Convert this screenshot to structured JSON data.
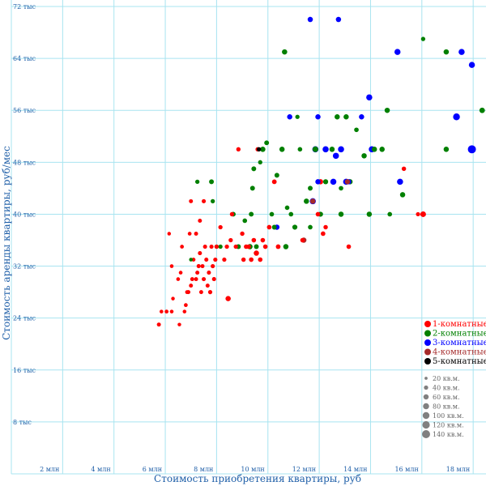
{
  "chart_data": {
    "type": "scatter",
    "xlabel": "Стоимость приобретения квартиры, руб",
    "ylabel": "Стоимость аренды квартиры, руб/мес",
    "xlim": [
      0,
      18.5
    ],
    "ylim": [
      0,
      73
    ],
    "x_ticks": [
      {
        "value": 2,
        "label": "2 млн"
      },
      {
        "value": 4,
        "label": "4 млн"
      },
      {
        "value": 6,
        "label": "6 млн"
      },
      {
        "value": 8,
        "label": "8 млн"
      },
      {
        "value": 10,
        "label": "10 млн"
      },
      {
        "value": 12,
        "label": "12 млн"
      },
      {
        "value": 14,
        "label": "14 млн"
      },
      {
        "value": 16,
        "label": "16 млн"
      },
      {
        "value": 18,
        "label": "18 млн"
      }
    ],
    "y_ticks": [
      {
        "value": 8,
        "label": "8 тыс"
      },
      {
        "value": 16,
        "label": "16 тыс"
      },
      {
        "value": 24,
        "label": "24 тыс"
      },
      {
        "value": 32,
        "label": "32 тыс"
      },
      {
        "value": 40,
        "label": "40 тыс"
      },
      {
        "value": 48,
        "label": "48 тыс"
      },
      {
        "value": 56,
        "label": "56 тыс"
      },
      {
        "value": 64,
        "label": "64 тыс"
      },
      {
        "value": 72,
        "label": "72 тыс"
      }
    ],
    "grid": true,
    "grid_color": "#a8e4f0",
    "legend_position": "bottom-right",
    "series": [
      {
        "name": "1-комнатные",
        "color": "#ff0000",
        "points": [
          {
            "x": 5.75,
            "y": 23,
            "area": 35
          },
          {
            "x": 5.85,
            "y": 25,
            "area": 30
          },
          {
            "x": 6.05,
            "y": 25,
            "area": 32
          },
          {
            "x": 6.25,
            "y": 25,
            "area": 30
          },
          {
            "x": 6.55,
            "y": 23,
            "area": 28
          },
          {
            "x": 6.15,
            "y": 37,
            "area": 28
          },
          {
            "x": 6.25,
            "y": 32,
            "area": 30
          },
          {
            "x": 6.3,
            "y": 27,
            "area": 28
          },
          {
            "x": 6.5,
            "y": 30,
            "area": 30
          },
          {
            "x": 6.6,
            "y": 31,
            "area": 30
          },
          {
            "x": 6.65,
            "y": 35,
            "area": 32
          },
          {
            "x": 6.75,
            "y": 25,
            "area": 30
          },
          {
            "x": 6.8,
            "y": 26,
            "area": 32
          },
          {
            "x": 6.85,
            "y": 28,
            "area": 33
          },
          {
            "x": 6.9,
            "y": 28,
            "area": 35
          },
          {
            "x": 7.0,
            "y": 29,
            "area": 34
          },
          {
            "x": 7.05,
            "y": 30,
            "area": 34
          },
          {
            "x": 7.1,
            "y": 33,
            "area": 34
          },
          {
            "x": 7.0,
            "y": 42,
            "area": 35
          },
          {
            "x": 6.95,
            "y": 37,
            "area": 32
          },
          {
            "x": 7.2,
            "y": 30,
            "area": 34
          },
          {
            "x": 7.25,
            "y": 31,
            "area": 35
          },
          {
            "x": 7.3,
            "y": 32,
            "area": 36
          },
          {
            "x": 7.35,
            "y": 34,
            "area": 36
          },
          {
            "x": 7.4,
            "y": 28,
            "area": 34
          },
          {
            "x": 7.45,
            "y": 32,
            "area": 35
          },
          {
            "x": 7.5,
            "y": 30,
            "area": 36
          },
          {
            "x": 7.55,
            "y": 35,
            "area": 37
          },
          {
            "x": 7.6,
            "y": 33,
            "area": 36
          },
          {
            "x": 7.65,
            "y": 29,
            "area": 35
          },
          {
            "x": 7.7,
            "y": 31,
            "area": 36
          },
          {
            "x": 7.75,
            "y": 28,
            "area": 38
          },
          {
            "x": 7.8,
            "y": 35,
            "area": 37
          },
          {
            "x": 7.85,
            "y": 32,
            "area": 38
          },
          {
            "x": 7.9,
            "y": 30,
            "area": 37
          },
          {
            "x": 7.95,
            "y": 33,
            "area": 38
          },
          {
            "x": 7.35,
            "y": 39,
            "area": 35
          },
          {
            "x": 7.5,
            "y": 42,
            "area": 37
          },
          {
            "x": 7.2,
            "y": 37,
            "area": 35
          },
          {
            "x": 8.0,
            "y": 35,
            "area": 38
          },
          {
            "x": 8.15,
            "y": 38,
            "area": 40
          },
          {
            "x": 8.3,
            "y": 33,
            "area": 39
          },
          {
            "x": 8.4,
            "y": 35,
            "area": 40
          },
          {
            "x": 8.45,
            "y": 27,
            "area": 60
          },
          {
            "x": 8.55,
            "y": 36,
            "area": 40
          },
          {
            "x": 8.6,
            "y": 40,
            "area": 40
          },
          {
            "x": 8.75,
            "y": 35,
            "area": 40
          },
          {
            "x": 8.85,
            "y": 50,
            "area": 40
          },
          {
            "x": 9.0,
            "y": 37,
            "area": 42
          },
          {
            "x": 9.05,
            "y": 33,
            "area": 42
          },
          {
            "x": 9.15,
            "y": 35,
            "area": 43
          },
          {
            "x": 9.25,
            "y": 35,
            "area": 45
          },
          {
            "x": 9.35,
            "y": 33,
            "area": 45
          },
          {
            "x": 9.45,
            "y": 36,
            "area": 45
          },
          {
            "x": 9.55,
            "y": 34,
            "area": 60
          },
          {
            "x": 9.6,
            "y": 50,
            "area": 40
          },
          {
            "x": 9.7,
            "y": 33,
            "area": 45
          },
          {
            "x": 9.8,
            "y": 36,
            "area": 45
          },
          {
            "x": 9.9,
            "y": 35,
            "area": 45
          },
          {
            "x": 10.05,
            "y": 38,
            "area": 45
          },
          {
            "x": 10.25,
            "y": 45,
            "area": 48
          },
          {
            "x": 10.4,
            "y": 35,
            "area": 48
          },
          {
            "x": 11.35,
            "y": 36,
            "area": 45
          },
          {
            "x": 11.95,
            "y": 40,
            "area": 45
          },
          {
            "x": 12.15,
            "y": 37,
            "area": 45
          },
          {
            "x": 12.25,
            "y": 38,
            "area": 42
          },
          {
            "x": 13.15,
            "y": 35,
            "area": 45
          },
          {
            "x": 15.3,
            "y": 47,
            "area": 42
          },
          {
            "x": 16.05,
            "y": 40,
            "area": 70
          },
          {
            "x": 15.85,
            "y": 40,
            "area": 38
          },
          {
            "x": 12.05,
            "y": 45,
            "area": 60
          }
        ]
      },
      {
        "name": "2-комнатные",
        "color": "#008000",
        "points": [
          {
            "x": 7.0,
            "y": 33,
            "area": 30
          },
          {
            "x": 7.25,
            "y": 45,
            "area": 40
          },
          {
            "x": 7.8,
            "y": 45,
            "area": 50
          },
          {
            "x": 7.85,
            "y": 42,
            "area": 40
          },
          {
            "x": 8.0,
            "y": 35,
            "area": 40
          },
          {
            "x": 8.15,
            "y": 35,
            "area": 40
          },
          {
            "x": 8.65,
            "y": 40,
            "area": 50
          },
          {
            "x": 8.85,
            "y": 35,
            "area": 50
          },
          {
            "x": 9.1,
            "y": 39,
            "area": 45
          },
          {
            "x": 9.35,
            "y": 40,
            "area": 50
          },
          {
            "x": 9.4,
            "y": 44,
            "area": 50
          },
          {
            "x": 9.45,
            "y": 47,
            "area": 50
          },
          {
            "x": 9.55,
            "y": 35,
            "area": 50
          },
          {
            "x": 9.7,
            "y": 48,
            "area": 40
          },
          {
            "x": 9.8,
            "y": 50,
            "area": 60
          },
          {
            "x": 9.95,
            "y": 51,
            "area": 50
          },
          {
            "x": 10.15,
            "y": 40,
            "area": 45
          },
          {
            "x": 10.25,
            "y": 38,
            "area": 50
          },
          {
            "x": 10.35,
            "y": 46,
            "area": 50
          },
          {
            "x": 10.55,
            "y": 50,
            "area": 60
          },
          {
            "x": 10.65,
            "y": 65,
            "area": 60
          },
          {
            "x": 10.75,
            "y": 41,
            "area": 45
          },
          {
            "x": 10.9,
            "y": 40,
            "area": 45
          },
          {
            "x": 11.05,
            "y": 38,
            "area": 55
          },
          {
            "x": 11.15,
            "y": 55,
            "area": 40
          },
          {
            "x": 11.25,
            "y": 50,
            "area": 45
          },
          {
            "x": 11.5,
            "y": 42,
            "area": 60
          },
          {
            "x": 11.65,
            "y": 44,
            "area": 50
          },
          {
            "x": 11.85,
            "y": 50,
            "area": 70
          },
          {
            "x": 12.05,
            "y": 40,
            "area": 55
          },
          {
            "x": 12.25,
            "y": 45,
            "area": 55
          },
          {
            "x": 12.5,
            "y": 50,
            "area": 60
          },
          {
            "x": 12.7,
            "y": 55,
            "area": 60
          },
          {
            "x": 12.85,
            "y": 40,
            "area": 60
          },
          {
            "x": 13.05,
            "y": 55,
            "area": 60
          },
          {
            "x": 13.2,
            "y": 45,
            "area": 60
          },
          {
            "x": 13.45,
            "y": 53,
            "area": 45
          },
          {
            "x": 13.75,
            "y": 49,
            "area": 60
          },
          {
            "x": 13.95,
            "y": 40,
            "area": 60
          },
          {
            "x": 14.15,
            "y": 50,
            "area": 60
          },
          {
            "x": 14.45,
            "y": 50,
            "area": 60
          },
          {
            "x": 14.65,
            "y": 56,
            "area": 60
          },
          {
            "x": 14.75,
            "y": 40,
            "area": 45
          },
          {
            "x": 15.25,
            "y": 43,
            "area": 60
          },
          {
            "x": 16.05,
            "y": 67,
            "area": 40
          },
          {
            "x": 16.95,
            "y": 65,
            "area": 60
          },
          {
            "x": 16.95,
            "y": 50,
            "area": 60
          },
          {
            "x": 18.35,
            "y": 56,
            "area": 65
          },
          {
            "x": 9.3,
            "y": 35,
            "area": 60
          },
          {
            "x": 10.7,
            "y": 35,
            "area": 60
          },
          {
            "x": 11.65,
            "y": 38,
            "area": 45
          },
          {
            "x": 12.85,
            "y": 44,
            "area": 45
          }
        ]
      },
      {
        "name": "3-комнатные",
        "color": "#0000ff",
        "points": [
          {
            "x": 10.35,
            "y": 38,
            "area": 60
          },
          {
            "x": 10.85,
            "y": 55,
            "area": 60
          },
          {
            "x": 11.65,
            "y": 70,
            "area": 60
          },
          {
            "x": 11.75,
            "y": 42,
            "area": 80
          },
          {
            "x": 11.85,
            "y": 50,
            "area": 80
          },
          {
            "x": 11.95,
            "y": 55,
            "area": 60
          },
          {
            "x": 12.25,
            "y": 50,
            "area": 80
          },
          {
            "x": 12.55,
            "y": 45,
            "area": 80
          },
          {
            "x": 12.65,
            "y": 49,
            "area": 80
          },
          {
            "x": 12.75,
            "y": 70,
            "area": 60
          },
          {
            "x": 12.85,
            "y": 50,
            "area": 80
          },
          {
            "x": 13.05,
            "y": 45,
            "area": 80
          },
          {
            "x": 13.15,
            "y": 45,
            "area": 60
          },
          {
            "x": 13.65,
            "y": 55,
            "area": 60
          },
          {
            "x": 13.95,
            "y": 58,
            "area": 80
          },
          {
            "x": 14.05,
            "y": 50,
            "area": 80
          },
          {
            "x": 15.05,
            "y": 65,
            "area": 80
          },
          {
            "x": 15.15,
            "y": 45,
            "area": 80
          },
          {
            "x": 17.35,
            "y": 55,
            "area": 100
          },
          {
            "x": 17.55,
            "y": 65,
            "area": 80
          },
          {
            "x": 17.95,
            "y": 63,
            "area": 80
          },
          {
            "x": 17.95,
            "y": 50,
            "area": 140
          },
          {
            "x": 11.95,
            "y": 45,
            "area": 60
          }
        ]
      },
      {
        "name": "4-комнатные",
        "color": "#a52a2a",
        "points": [
          {
            "x": 11.4,
            "y": 36,
            "area": 60
          },
          {
            "x": 11.75,
            "y": 42,
            "area": 60
          },
          {
            "x": 13.1,
            "y": 45,
            "area": 60
          }
        ]
      },
      {
        "name": "5-комнатные",
        "color": "#000000",
        "points": [
          {
            "x": 9.65,
            "y": 50,
            "area": 40
          }
        ]
      }
    ],
    "size_legend": [
      {
        "area": 20,
        "label": "20 кв.м."
      },
      {
        "area": 40,
        "label": "40 кв.м."
      },
      {
        "area": 60,
        "label": "60 кв.м."
      },
      {
        "area": 80,
        "label": "80 кв.м."
      },
      {
        "area": 100,
        "label": "100 кв.м."
      },
      {
        "area": 120,
        "label": "120 кв.м."
      },
      {
        "area": 140,
        "label": "140 кв.м."
      }
    ],
    "size_legend_color": "#808080"
  }
}
